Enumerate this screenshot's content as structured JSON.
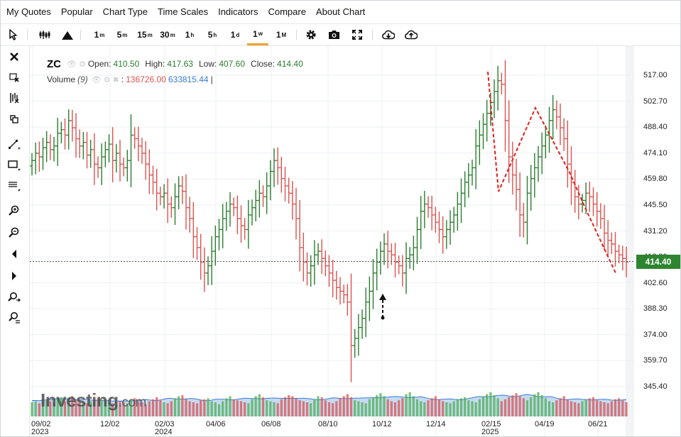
{
  "menu": [
    "My Quotes",
    "Popular",
    "Chart Type",
    "Time Scales",
    "Indicators",
    "Compare",
    "About Chart"
  ],
  "toolbar": {
    "timeframes": [
      {
        "num": "1",
        "unit": "m"
      },
      {
        "num": "5",
        "unit": "m"
      },
      {
        "num": "15",
        "unit": "m"
      },
      {
        "num": "30",
        "unit": "m"
      },
      {
        "num": "1",
        "unit": "h"
      },
      {
        "num": "5",
        "unit": "h"
      },
      {
        "num": "1",
        "unit": "d"
      },
      {
        "num": "1",
        "unit": "w"
      },
      {
        "num": "1",
        "unit": "M"
      }
    ],
    "active_timeframe": "1w",
    "accent": "#f0a22e"
  },
  "legend": {
    "symbol": "ZC",
    "open_label": "Open:",
    "open": "410.50",
    "high_label": "High:",
    "high": "417.63",
    "low_label": "Low:",
    "low": "407.60",
    "close_label": "Close:",
    "close": "414.40",
    "volume_label": "Volume",
    "volume_period": "(9)",
    "volume_value": "136726.00",
    "volume_ma": "633815.44",
    "separator": ":",
    "cursor": "|"
  },
  "current_price": {
    "label": "414.40",
    "value": 414.4,
    "color": "#2d8530"
  },
  "watermark": {
    "brand": "Investing",
    "suffix": ".com"
  },
  "colors": {
    "up": "#2a7d2f",
    "down": "#d9534f",
    "volume_area": "#bcd3ef",
    "drawing": "#e0201c"
  },
  "chart_data": {
    "type": "ohlc",
    "ylim": [
      345.4,
      525
    ],
    "y_ticks": [
      "517.00",
      "502.70",
      "488.40",
      "474.10",
      "459.80",
      "445.50",
      "431.20",
      "416.90",
      "402.60",
      "388.30",
      "374.00",
      "359.70",
      "345.40"
    ],
    "x_ticks": [
      {
        "label": "09/02",
        "year": "2023"
      },
      {
        "label": "12/02",
        "year": ""
      },
      {
        "label": "02/03",
        "year": "2024"
      },
      {
        "label": "04/06",
        "year": ""
      },
      {
        "label": "06/08",
        "year": ""
      },
      {
        "label": "08/10",
        "year": ""
      },
      {
        "label": "10/12",
        "year": ""
      },
      {
        "label": "12/14",
        "year": ""
      },
      {
        "label": "02/15",
        "year": "2025"
      },
      {
        "label": "04/19",
        "year": ""
      },
      {
        "label": "06/21",
        "year": ""
      }
    ],
    "close_series": [
      470,
      474,
      472,
      477,
      480,
      476,
      478,
      485,
      487,
      484,
      492,
      488,
      482,
      478,
      480,
      473,
      476,
      468,
      466,
      472,
      476,
      479,
      470,
      474,
      468,
      466,
      470,
      484,
      482,
      478,
      474,
      468,
      462,
      458,
      452,
      450,
      452,
      446,
      444,
      450,
      456,
      453,
      444,
      438,
      428,
      422,
      414,
      408,
      412,
      420,
      428,
      432,
      438,
      442,
      446,
      444,
      438,
      434,
      432,
      440,
      444,
      448,
      452,
      450,
      456,
      464,
      470,
      466,
      460,
      456,
      452,
      446,
      438,
      422,
      414,
      408,
      412,
      418,
      420,
      416,
      412,
      408,
      404,
      400,
      398,
      396,
      392,
      368,
      372,
      378,
      383,
      392,
      398,
      408,
      414,
      420,
      424,
      420,
      418,
      414,
      412,
      408,
      416,
      418,
      422,
      432,
      442,
      446,
      444,
      440,
      436,
      432,
      428,
      432,
      436,
      440,
      446,
      452,
      458,
      462,
      466,
      478,
      484,
      490,
      496,
      502,
      508,
      514,
      512,
      492,
      472,
      462,
      454,
      440,
      436,
      452,
      460,
      466,
      472,
      478,
      484,
      492,
      498,
      494,
      488,
      482,
      468,
      458,
      450,
      446,
      448,
      452,
      450,
      446,
      442,
      438,
      430,
      426,
      424,
      420,
      418,
      416,
      414
    ]
  },
  "volume": [
    28,
    30,
    26,
    34,
    32,
    30,
    28,
    36,
    38,
    30,
    34,
    40,
    32,
    30,
    28,
    26,
    30,
    32,
    36,
    34,
    30,
    28,
    26,
    24,
    30,
    28,
    26,
    34,
    36,
    30,
    28,
    24,
    30,
    34,
    38,
    32,
    28,
    26,
    30,
    36,
    40,
    42,
    34,
    30,
    28,
    26,
    32,
    34,
    36,
    30,
    28,
    24,
    30,
    36,
    40,
    34,
    32,
    30,
    28,
    26,
    34,
    40,
    44,
    38,
    32,
    30,
    28,
    26,
    34,
    38,
    42,
    40,
    36,
    32,
    30,
    28,
    26,
    34,
    40,
    38,
    32,
    28,
    26,
    30,
    36,
    40,
    44,
    38,
    32,
    30,
    28,
    26,
    34,
    38,
    42,
    46,
    40,
    34,
    30,
    28,
    32,
    36,
    44,
    48,
    40,
    34,
    30,
    28,
    32,
    36,
    40,
    34,
    30,
    28,
    26,
    30,
    34,
    36,
    38,
    32,
    30,
    28,
    34,
    40,
    44,
    48,
    42,
    36,
    30,
    34,
    38,
    42,
    46,
    40,
    36,
    32,
    38,
    44,
    48,
    42,
    36,
    30,
    28,
    32,
    36,
    40,
    34,
    30,
    28,
    26,
    30,
    34,
    36,
    38,
    32,
    30,
    28,
    26,
    30,
    34,
    36,
    32,
    28
  ]
}
